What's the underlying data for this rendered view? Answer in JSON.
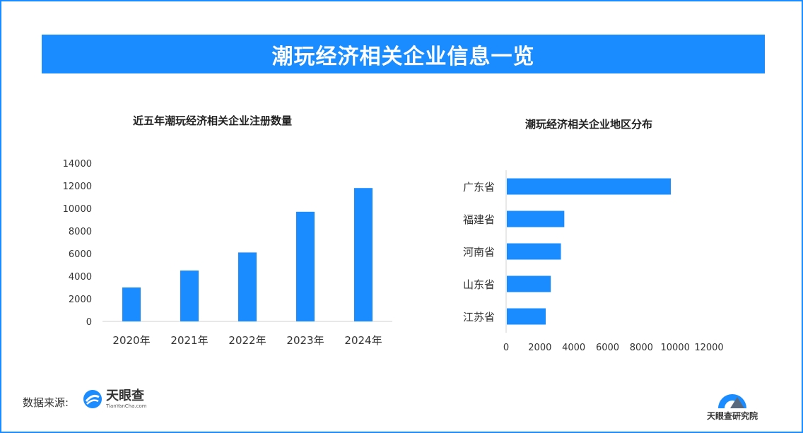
{
  "title": "潮玩经济相关企业信息一览",
  "footer": {
    "source_label": "数据来源:",
    "brand_main": "天眼查",
    "brand_sub": "TianYanCha.com",
    "institute": "天眼查研究院"
  },
  "colors": {
    "accent": "#1a8cff",
    "bar": "#1a8cff"
  },
  "icons": {
    "source_logo": "tianyancha-logo-icon",
    "institute_logo": "tianyancha-institute-logo-icon"
  },
  "chart_data": [
    {
      "type": "bar",
      "orientation": "vertical",
      "title": "近五年潮玩经济相关企业注册数量",
      "categories": [
        "2020年",
        "2021年",
        "2022年",
        "2023年",
        "2024年"
      ],
      "values": [
        3000,
        4500,
        6100,
        9700,
        11800
      ],
      "ylim": [
        0,
        14000
      ],
      "yticks": [
        0,
        2000,
        4000,
        6000,
        8000,
        10000,
        12000,
        14000
      ],
      "grid": false,
      "legend": "none"
    },
    {
      "type": "bar",
      "orientation": "horizontal",
      "title": "潮玩经济相关企业地区分布",
      "categories": [
        "广东省",
        "福建省",
        "河南省",
        "山东省",
        "江苏省"
      ],
      "values": [
        9700,
        3400,
        3200,
        2600,
        2300
      ],
      "xlim": [
        0,
        12000
      ],
      "xticks": [
        0,
        2000,
        4000,
        6000,
        8000,
        10000,
        12000
      ],
      "grid": false,
      "legend": "none"
    }
  ]
}
